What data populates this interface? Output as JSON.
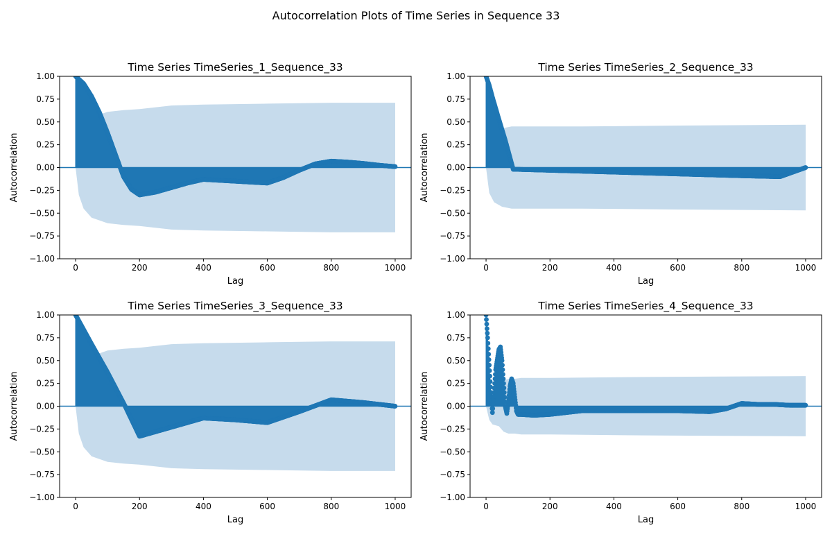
{
  "figure": {
    "title": "Autocorrelation Plots of Time Series in Sequence 33"
  },
  "colors": {
    "line": "#1f77b4",
    "band": "#c6dbec"
  },
  "chart_data": [
    {
      "type": "line",
      "title": "Time Series TimeSeries_1_Sequence_33",
      "xlabel": "Lag",
      "ylabel": "Autocorrelation",
      "xlim": [
        -50,
        1050
      ],
      "ylim": [
        -1.0,
        1.0
      ],
      "xticks": [
        0,
        200,
        400,
        600,
        800,
        1000
      ],
      "yticks": [
        -1.0,
        -0.75,
        -0.5,
        -0.25,
        0.0,
        0.25,
        0.5,
        0.75,
        1.0
      ],
      "grid": false,
      "series": [
        {
          "values_at_x": [
            0,
            25,
            50,
            75,
            100,
            125,
            150,
            175,
            200,
            250,
            300,
            350,
            400,
            500,
            600,
            650,
            700,
            750,
            800,
            850,
            900,
            950,
            1000
          ],
          "values": [
            1.0,
            0.92,
            0.78,
            0.6,
            0.38,
            0.14,
            -0.1,
            -0.24,
            -0.3,
            -0.27,
            -0.22,
            -0.17,
            -0.13,
            -0.15,
            -0.17,
            -0.11,
            -0.03,
            0.04,
            0.07,
            0.06,
            0.045,
            0.025,
            0.01
          ]
        }
      ],
      "confidence_interval": {
        "x": [
          0,
          10,
          25,
          50,
          100,
          150,
          200,
          300,
          400,
          600,
          800,
          1000
        ],
        "upper": [
          0.0,
          0.3,
          0.45,
          0.55,
          0.61,
          0.63,
          0.64,
          0.68,
          0.69,
          0.7,
          0.71,
          0.71
        ]
      }
    },
    {
      "type": "line",
      "title": "Time Series TimeSeries_2_Sequence_33",
      "xlabel": "Lag",
      "ylabel": "Autocorrelation",
      "xlim": [
        -50,
        1050
      ],
      "ylim": [
        -1.0,
        1.0
      ],
      "xticks": [
        0,
        200,
        400,
        600,
        800,
        1000
      ],
      "yticks": [
        -1.0,
        -0.75,
        -0.5,
        -0.25,
        0.0,
        0.25,
        0.5,
        0.75,
        1.0
      ],
      "grid": false,
      "series": [
        {
          "values_at_x": [
            0,
            10,
            20,
            40,
            60,
            85,
            100,
            200,
            400,
            600,
            800,
            920,
            1000
          ],
          "values": [
            1.0,
            0.9,
            0.77,
            0.53,
            0.3,
            -0.02,
            -0.02,
            -0.03,
            -0.05,
            -0.07,
            -0.09,
            -0.1,
            0.0
          ]
        }
      ],
      "confidence_interval": {
        "x": [
          0,
          10,
          25,
          50,
          80,
          150,
          300,
          600,
          1000
        ],
        "upper": [
          0.0,
          0.28,
          0.38,
          0.43,
          0.45,
          0.45,
          0.45,
          0.46,
          0.47
        ]
      }
    },
    {
      "type": "line",
      "title": "Time Series TimeSeries_3_Sequence_33",
      "xlabel": "Lag",
      "ylabel": "Autocorrelation",
      "xlim": [
        -50,
        1050
      ],
      "ylim": [
        -1.0,
        1.0
      ],
      "xticks": [
        0,
        200,
        400,
        600,
        800,
        1000
      ],
      "yticks": [
        -1.0,
        -0.75,
        -0.5,
        -0.25,
        0.0,
        0.25,
        0.5,
        0.75,
        1.0
      ],
      "grid": false,
      "series": [
        {
          "values_at_x": [
            0,
            50,
            100,
            155,
            200,
            300,
            400,
            500,
            600,
            700,
            800,
            900,
            1000
          ],
          "values": [
            1.0,
            0.68,
            0.37,
            0.0,
            -0.33,
            -0.23,
            -0.13,
            -0.15,
            -0.18,
            -0.06,
            0.07,
            0.04,
            0.0
          ]
        }
      ],
      "confidence_interval": {
        "x": [
          0,
          10,
          25,
          50,
          100,
          150,
          200,
          300,
          400,
          600,
          800,
          1000
        ],
        "upper": [
          0.0,
          0.3,
          0.45,
          0.55,
          0.61,
          0.63,
          0.64,
          0.68,
          0.69,
          0.7,
          0.71,
          0.71
        ]
      }
    },
    {
      "type": "line",
      "title": "Time Series TimeSeries_4_Sequence_33",
      "xlabel": "Lag",
      "ylabel": "Autocorrelation",
      "xlim": [
        -50,
        1050
      ],
      "ylim": [
        -1.0,
        1.0
      ],
      "xticks": [
        0,
        200,
        400,
        600,
        800,
        1000
      ],
      "yticks": [
        -1.0,
        -0.75,
        -0.5,
        -0.25,
        0.0,
        0.25,
        0.5,
        0.75,
        1.0
      ],
      "grid": false,
      "series": [
        {
          "values_at_x": [
            0,
            5,
            10,
            15,
            20,
            25,
            30,
            40,
            45,
            50,
            55,
            60,
            65,
            70,
            75,
            80,
            85,
            90,
            95,
            100,
            110,
            150,
            200,
            250,
            300,
            400,
            500,
            600,
            700,
            750,
            800,
            850,
            900,
            950,
            1000
          ],
          "values": [
            1.0,
            0.75,
            0.45,
            0.15,
            -0.07,
            0.15,
            0.4,
            0.62,
            0.65,
            0.5,
            0.25,
            0.0,
            -0.08,
            0.05,
            0.22,
            0.3,
            0.25,
            0.1,
            -0.05,
            -0.09,
            -0.09,
            -0.1,
            -0.09,
            -0.07,
            -0.05,
            -0.05,
            -0.05,
            -0.05,
            -0.06,
            -0.03,
            0.03,
            0.02,
            0.02,
            0.01,
            0.01
          ]
        }
      ],
      "confidence_interval": {
        "x": [
          0,
          10,
          20,
          40,
          55,
          70,
          90,
          110,
          200,
          500,
          1000
        ],
        "upper": [
          0.0,
          0.15,
          0.2,
          0.22,
          0.28,
          0.3,
          0.3,
          0.31,
          0.31,
          0.32,
          0.33
        ]
      }
    }
  ]
}
